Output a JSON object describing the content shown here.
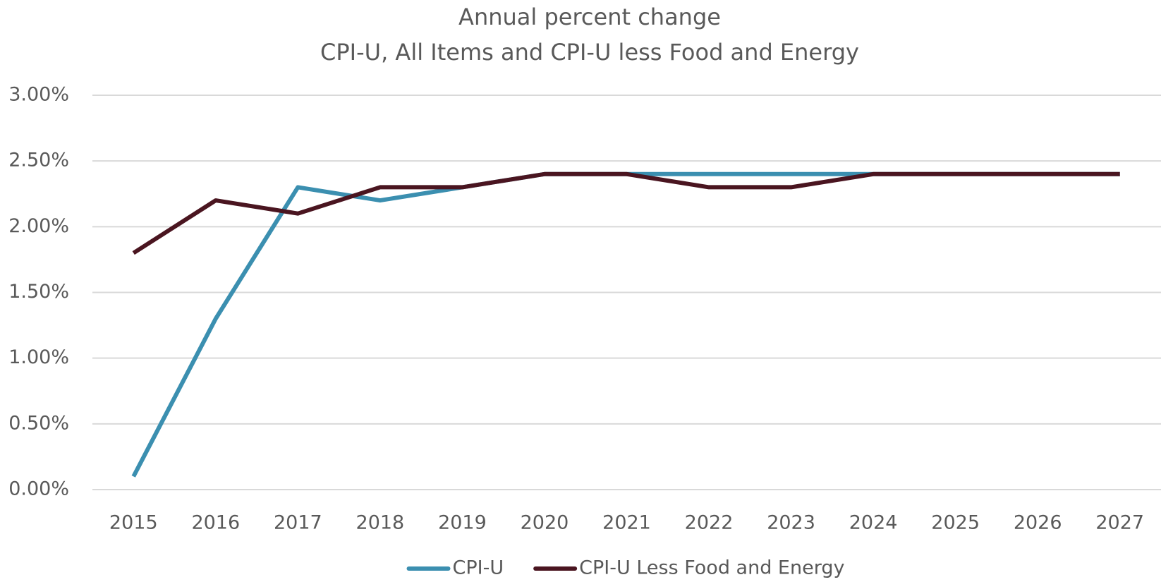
{
  "chart_data": {
    "type": "line",
    "title": "Annual percent change",
    "subtitle": "CPI-U, All Items and CPI-U less Food and Energy",
    "categories": [
      "2015",
      "2016",
      "2017",
      "2018",
      "2019",
      "2020",
      "2021",
      "2022",
      "2023",
      "2024",
      "2025",
      "2026",
      "2027"
    ],
    "series": [
      {
        "name": "CPI-U",
        "color": "#3b8fb0",
        "values": [
          0.1,
          1.3,
          2.3,
          2.2,
          2.3,
          2.4,
          2.4,
          2.4,
          2.4,
          2.4,
          2.4,
          2.4,
          2.4
        ]
      },
      {
        "name": "CPI-U Less Food and Energy",
        "color": "#4a1520",
        "values": [
          1.8,
          2.2,
          2.1,
          2.3,
          2.3,
          2.4,
          2.4,
          2.3,
          2.3,
          2.4,
          2.4,
          2.4,
          2.4
        ]
      }
    ],
    "ylim": [
      0,
      3
    ],
    "yticks": [
      {
        "value": 0,
        "label": "0.00%"
      },
      {
        "value": 0.5,
        "label": "0.50%"
      },
      {
        "value": 1,
        "label": "1.00%"
      },
      {
        "value": 1.5,
        "label": "1.50%"
      },
      {
        "value": 2,
        "label": "2.00%"
      },
      {
        "value": 2.5,
        "label": "2.50%"
      },
      {
        "value": 3,
        "label": "3.00%"
      }
    ],
    "grid": true,
    "legend": "bottom"
  }
}
